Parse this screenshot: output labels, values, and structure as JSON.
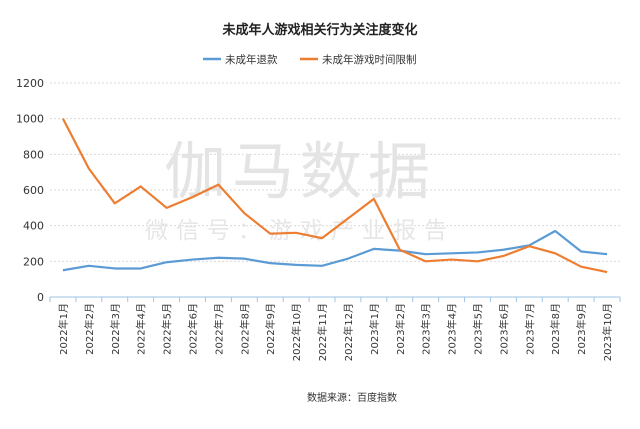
{
  "chart_data": {
    "type": "line",
    "title": "未成年人游戏相关行为关注度变化",
    "xlabel": "",
    "ylabel": "",
    "ylim": [
      0,
      1200
    ],
    "yticks": [
      0,
      200,
      400,
      600,
      800,
      1000,
      1200
    ],
    "grid": true,
    "legend_placement": "top-center",
    "categories": [
      "2022年1月",
      "2022年2月",
      "2022年3月",
      "2022年4月",
      "2022年5月",
      "2022年6月",
      "2022年7月",
      "2022年8月",
      "2022年9月",
      "2022年10月",
      "2022年11月",
      "2022年12月",
      "2023年1月",
      "2023年2月",
      "2023年3月",
      "2023年4月",
      "2023年5月",
      "2023年6月",
      "2023年7月",
      "2023年8月",
      "2023年9月",
      "2023年10月"
    ],
    "series": [
      {
        "name": "未成年退款",
        "color": "#5B9BD5",
        "values": [
          150,
          175,
          160,
          160,
          195,
          210,
          220,
          215,
          190,
          180,
          175,
          215,
          270,
          260,
          240,
          245,
          250,
          265,
          290,
          370,
          255,
          240
        ]
      },
      {
        "name": "未成年游戏时间限制",
        "color": "#ED7D31",
        "values": [
          1000,
          720,
          525,
          620,
          500,
          560,
          630,
          470,
          355,
          360,
          330,
          440,
          550,
          265,
          200,
          210,
          200,
          230,
          285,
          245,
          170,
          140
        ]
      }
    ],
    "source": "数据来源：百度指数",
    "watermark": "伽马数据",
    "watermark_sub": "微信号：游戏产业报告"
  }
}
